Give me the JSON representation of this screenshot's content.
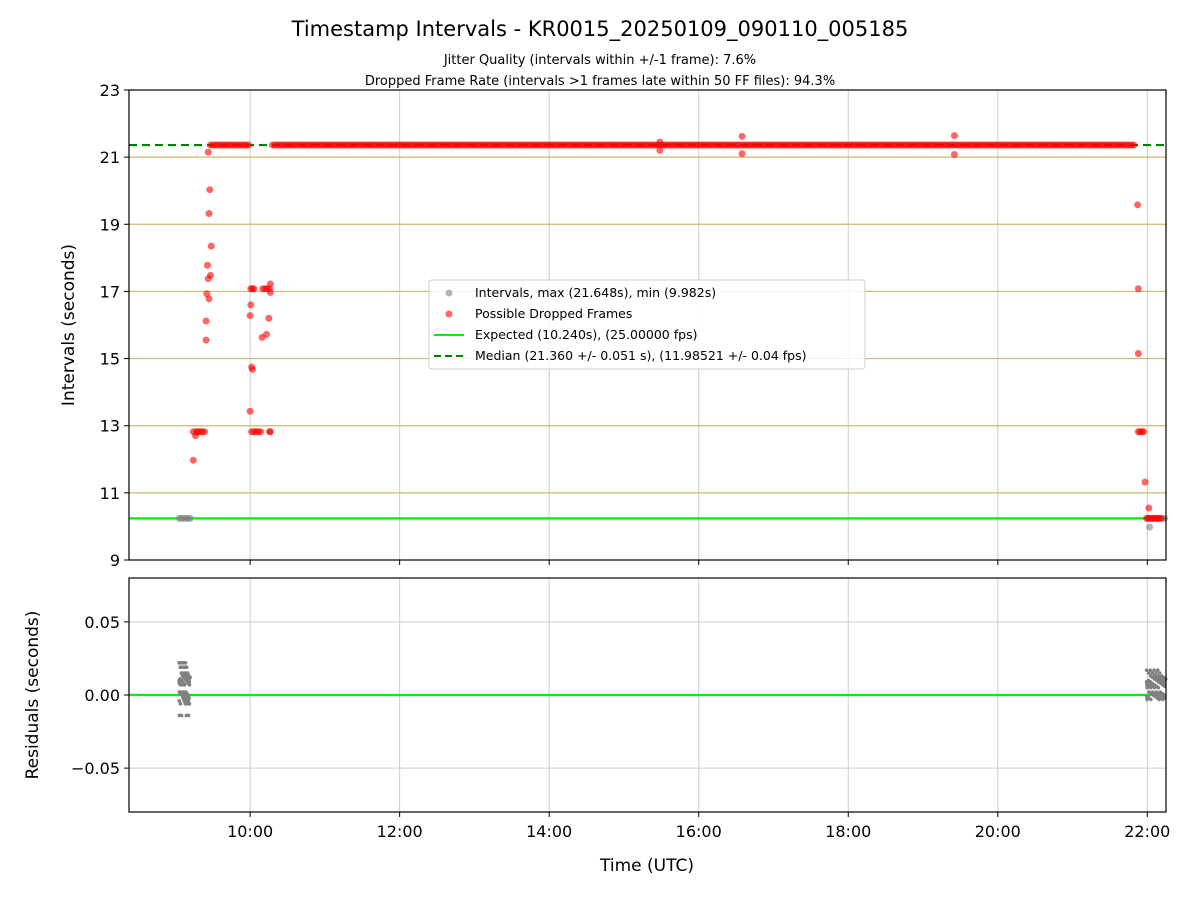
{
  "figure": {
    "title": "Timestamp Intervals - KR0015_20250109_090110_005185",
    "subtitle_1": "Jitter Quality (intervals within +/-1 frame): 7.6%",
    "subtitle_2": "Dropped Frame Rate (intervals >1 frames late within 50 FF files): 94.3%"
  },
  "colors": {
    "intervals": "#808080",
    "dropped": "#ff0000",
    "expected": "#00ee00",
    "median": "#008000",
    "frame_lines": "#d2b672",
    "grid": "#cccccc"
  },
  "chart_data": [
    {
      "type": "scatter",
      "title": "",
      "xlabel": "",
      "ylabel": "Intervals (seconds)",
      "x_unit": "hours UTC",
      "xlim": [
        8.38,
        22.25
      ],
      "ylim": [
        9,
        23
      ],
      "y_ticks": [
        "9",
        "11",
        "13",
        "15",
        "17",
        "19",
        "21",
        "23"
      ],
      "y_tick_values": [
        9,
        11,
        13,
        15,
        17,
        19,
        21,
        23
      ],
      "x_tick_values": [
        10,
        12,
        14,
        16,
        18,
        20,
        22
      ],
      "frame_multiple_lines": [
        11,
        13,
        15,
        17,
        19,
        21
      ],
      "grid": true,
      "legend_position": "center",
      "legend": [
        "Intervals, max (21.648s), min (9.982s)",
        "Possible Dropped Frames",
        "Expected (10.240s), (25.00000 fps)",
        "Median (21.360 +/- 0.051 s), (11.98521 +/- 0.04 fps)"
      ],
      "expected_line": 10.24,
      "median_line": 21.36,
      "series": [
        {
          "name": "Intervals, max (21.648s), min (9.982s)",
          "points": [
            [
              9.05,
              10.24
            ],
            [
              9.08,
              10.24
            ],
            [
              9.11,
              10.24
            ],
            [
              9.14,
              10.24
            ],
            [
              9.17,
              10.24
            ],
            [
              9.2,
              10.24
            ],
            [
              22.02,
              10.24
            ],
            [
              22.05,
              10.24
            ],
            [
              22.08,
              10.24
            ],
            [
              22.12,
              10.24
            ],
            [
              22.16,
              10.24
            ],
            [
              22.2,
              10.24
            ],
            [
              22.23,
              10.24
            ],
            [
              22.03,
              9.98
            ]
          ]
        },
        {
          "name": "Possible Dropped Frames",
          "points": [
            [
              9.24,
              11.97
            ],
            [
              9.24,
              12.82
            ],
            [
              9.27,
              12.7
            ],
            [
              9.28,
              12.82
            ],
            [
              9.3,
              12.82
            ],
            [
              9.33,
              12.82
            ],
            [
              9.36,
              12.82
            ],
            [
              9.39,
              12.82
            ],
            [
              9.41,
              15.55
            ],
            [
              9.41,
              16.12
            ],
            [
              9.42,
              16.93
            ],
            [
              9.43,
              17.78
            ],
            [
              9.44,
              17.38
            ],
            [
              9.44,
              21.15
            ],
            [
              9.45,
              16.78
            ],
            [
              9.45,
              19.32
            ],
            [
              9.46,
              20.03
            ],
            [
              9.47,
              17.48
            ],
            [
              9.48,
              18.35
            ],
            [
              10.0,
              13.43
            ],
            [
              10.0,
              16.28
            ],
            [
              10.01,
              16.6
            ],
            [
              10.02,
              14.75
            ],
            [
              10.03,
              14.68
            ],
            [
              10.01,
              17.08
            ],
            [
              10.03,
              17.08
            ],
            [
              10.05,
              17.08
            ],
            [
              10.02,
              12.82
            ],
            [
              10.05,
              12.82
            ],
            [
              10.08,
              12.82
            ],
            [
              10.11,
              12.82
            ],
            [
              10.14,
              12.82
            ],
            [
              10.16,
              15.63
            ],
            [
              10.17,
              17.08
            ],
            [
              10.2,
              17.08
            ],
            [
              10.23,
              17.08
            ],
            [
              10.22,
              15.72
            ],
            [
              10.25,
              16.2
            ],
            [
              10.26,
              17.08
            ],
            [
              10.27,
              16.97
            ],
            [
              10.27,
              17.22
            ],
            [
              10.26,
              12.82
            ],
            [
              10.27,
              12.82
            ],
            [
              16.58,
              21.62
            ],
            [
              16.58,
              21.1
            ],
            [
              19.42,
              21.64
            ],
            [
              19.42,
              21.08
            ],
            [
              15.48,
              21.2
            ],
            [
              15.48,
              21.45
            ],
            [
              21.87,
              19.58
            ],
            [
              21.88,
              17.08
            ],
            [
              21.88,
              15.15
            ],
            [
              21.88,
              12.82
            ],
            [
              21.9,
              12.82
            ],
            [
              21.93,
              12.82
            ],
            [
              21.95,
              12.82
            ],
            [
              21.97,
              11.32
            ],
            [
              22.02,
              10.55
            ],
            [
              21.99,
              10.24
            ],
            [
              22.01,
              10.24
            ],
            [
              22.04,
              10.24
            ],
            [
              22.07,
              10.24
            ],
            [
              22.1,
              10.24
            ],
            [
              22.13,
              10.24
            ],
            [
              22.15,
              10.24
            ],
            [
              22.18,
              10.24
            ]
          ],
          "dense_runs_at_21_36": [
            [
              9.47,
              10.0
            ],
            [
              10.3,
              21.85
            ]
          ]
        },
        {
          "name": "Expected (10.240s), (25.00000 fps)",
          "y": 10.24
        },
        {
          "name": "Median (21.360 +/- 0.051 s), (11.98521 +/- 0.04 fps)",
          "y": 21.36
        }
      ]
    },
    {
      "type": "scatter",
      "title": "",
      "xlabel": "Time (UTC)",
      "ylabel": "Residuals (seconds)",
      "x_unit": "hours UTC",
      "xlim": [
        8.38,
        22.25
      ],
      "ylim": [
        -0.08,
        0.08
      ],
      "x_ticks": [
        "10:00",
        "12:00",
        "14:00",
        "16:00",
        "18:00",
        "20:00",
        "22:00"
      ],
      "x_tick_values": [
        10,
        12,
        14,
        16,
        18,
        20,
        22
      ],
      "y_ticks": [
        "−0.05",
        "0.00",
        "0.05"
      ],
      "y_tick_values": [
        -0.05,
        0.0,
        0.05
      ],
      "grid": true,
      "zero_line": 0.0,
      "clusters": [
        {
          "x_range": [
            9.05,
            9.2
          ],
          "y_points": [
            0.022,
            0.019,
            0.015,
            0.013,
            0.012,
            0.011,
            0.01,
            0.009,
            0.008,
            0.007,
            0.002,
            0.001,
            0.0,
            -0.002,
            -0.004,
            -0.006,
            -0.014
          ]
        },
        {
          "x_range": [
            21.99,
            22.25
          ],
          "y_points": [
            0.017,
            0.015,
            0.013,
            0.012,
            0.011,
            0.01,
            0.009,
            0.008,
            0.007,
            0.006,
            0.005,
            0.002,
            0.001,
            0.0,
            -0.001,
            -0.002,
            -0.003
          ]
        }
      ]
    }
  ]
}
